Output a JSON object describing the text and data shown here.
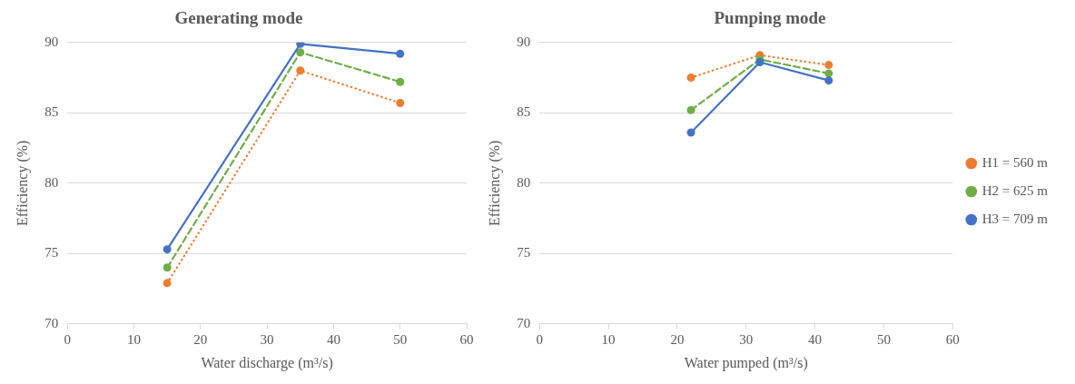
{
  "chart_data": [
    {
      "type": "line",
      "title": "Generating mode",
      "xlabel": "Water discharge (m³/s)",
      "ylabel": "Efficiency (%)",
      "xlim": [
        0,
        60
      ],
      "xticks": [
        0,
        10,
        20,
        30,
        40,
        50,
        60
      ],
      "ylim": [
        70,
        90
      ],
      "yticks": [
        70,
        75,
        80,
        85,
        90
      ],
      "grid": "y",
      "legend": false,
      "marker": "circle",
      "x": [
        15,
        35,
        50
      ],
      "series": [
        {
          "color": "#ed7d31",
          "line_style": "dotted",
          "values": [
            72.9,
            88.0,
            85.7
          ]
        },
        {
          "color": "#70ad47",
          "line_style": "dashed",
          "values": [
            74.0,
            89.3,
            87.2
          ]
        },
        {
          "color": "#4472c4",
          "line_style": "solid",
          "values": [
            75.3,
            89.9,
            89.2
          ]
        }
      ]
    },
    {
      "type": "line",
      "title": "Pumping mode",
      "xlabel": "Water pumped (m³/s)",
      "ylabel": "Efficiency (%)",
      "xlim": [
        0,
        60
      ],
      "xticks": [
        0,
        10,
        20,
        30,
        40,
        50,
        60
      ],
      "ylim": [
        70,
        90
      ],
      "yticks": [
        70,
        75,
        80,
        85,
        90
      ],
      "grid": "y",
      "legend": "right",
      "marker": "circle",
      "x": [
        22,
        32,
        42
      ],
      "series": [
        {
          "name": "H1 = 560 m",
          "color": "#ed7d31",
          "line_style": "dotted",
          "values": [
            87.5,
            89.1,
            88.4
          ]
        },
        {
          "name": "H2 = 625 m",
          "color": "#70ad47",
          "line_style": "dashed",
          "values": [
            85.2,
            88.8,
            87.8
          ]
        },
        {
          "name": "H3 = 709 m",
          "color": "#4472c4",
          "line_style": "solid",
          "values": [
            83.6,
            88.6,
            87.3
          ]
        }
      ]
    }
  ]
}
